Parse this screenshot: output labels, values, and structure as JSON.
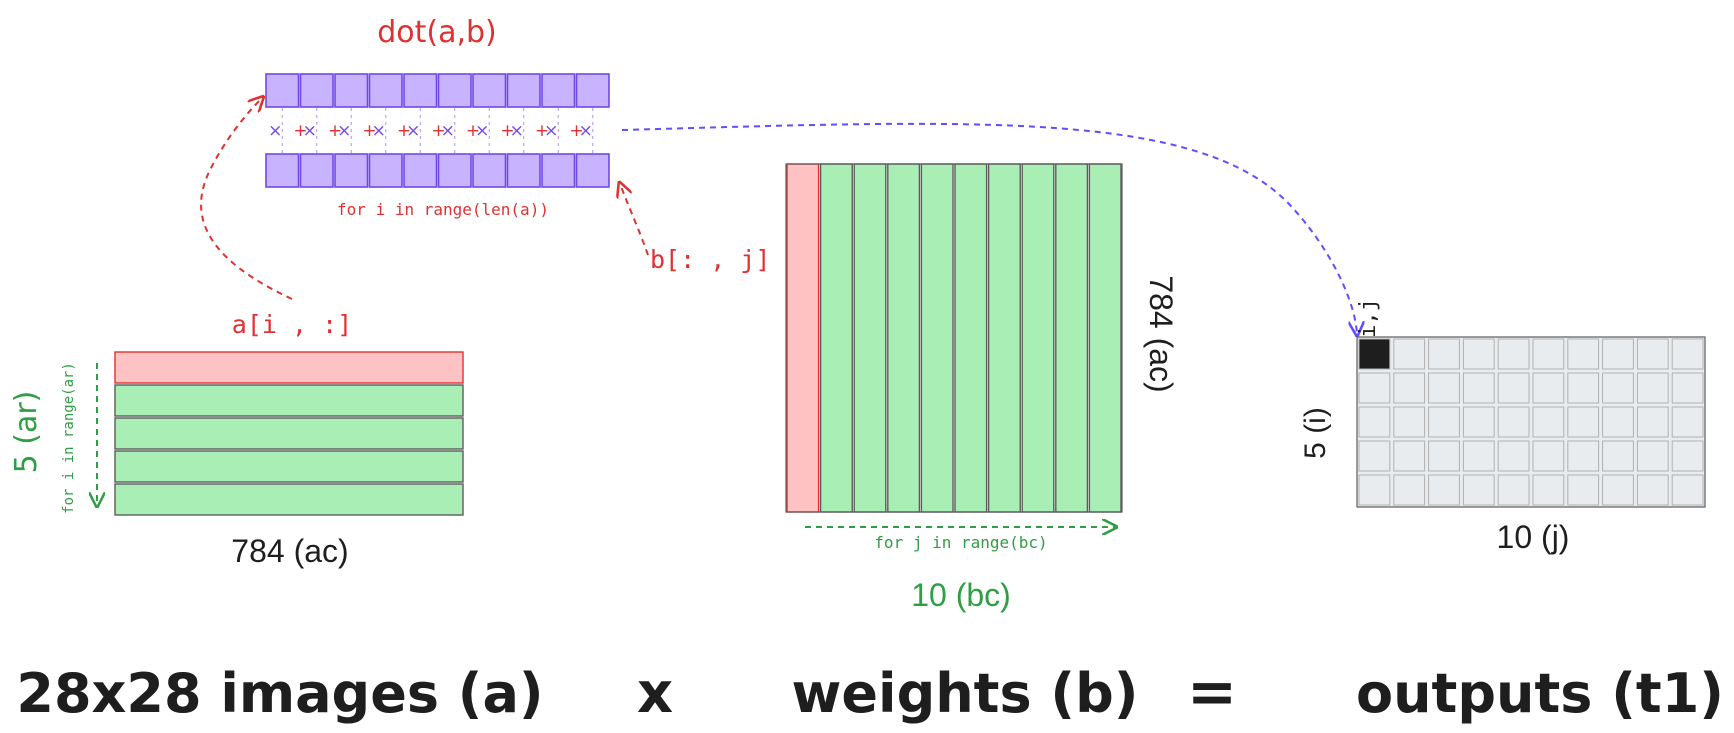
{
  "colors": {
    "red": "#e03131",
    "green": "#2f9e44",
    "blue": "#5f4dff",
    "black": "#1e1e1e",
    "purple_fill": "#c8b3ff",
    "purple_stroke": "#7048e8",
    "green_fill": "#a9efb5",
    "red_fill": "#ffc2c2",
    "cell_fill": "#e9ecef"
  },
  "dot_product": {
    "title": "dot(a,b)",
    "cells": 10,
    "times_symbol": "×",
    "plus_symbol": "+",
    "loop_label": "for i in range(len(a))",
    "b_slice_label": "b[: , j]"
  },
  "matrix_a": {
    "row_slice_label": "a[i , :]",
    "rows": 5,
    "rows_label": "5 (ar)",
    "loop_label": "for i in range(ar)",
    "cols_label": "784 (ac)"
  },
  "matrix_b": {
    "cols": 10,
    "rows_label": "784 (ac)",
    "loop_label": "for j in range(bc)",
    "cols_label": "10 (bc)"
  },
  "matrix_out": {
    "rows": 5,
    "cols": 10,
    "cell_label": "i,j",
    "rows_label": "5 (i)",
    "cols_label": "10 (j)"
  },
  "equation": {
    "term_a": "28x28 images (a)",
    "times": "x",
    "term_b": "weights (b)",
    "equals": "=",
    "term_out": "outputs (t1)"
  }
}
